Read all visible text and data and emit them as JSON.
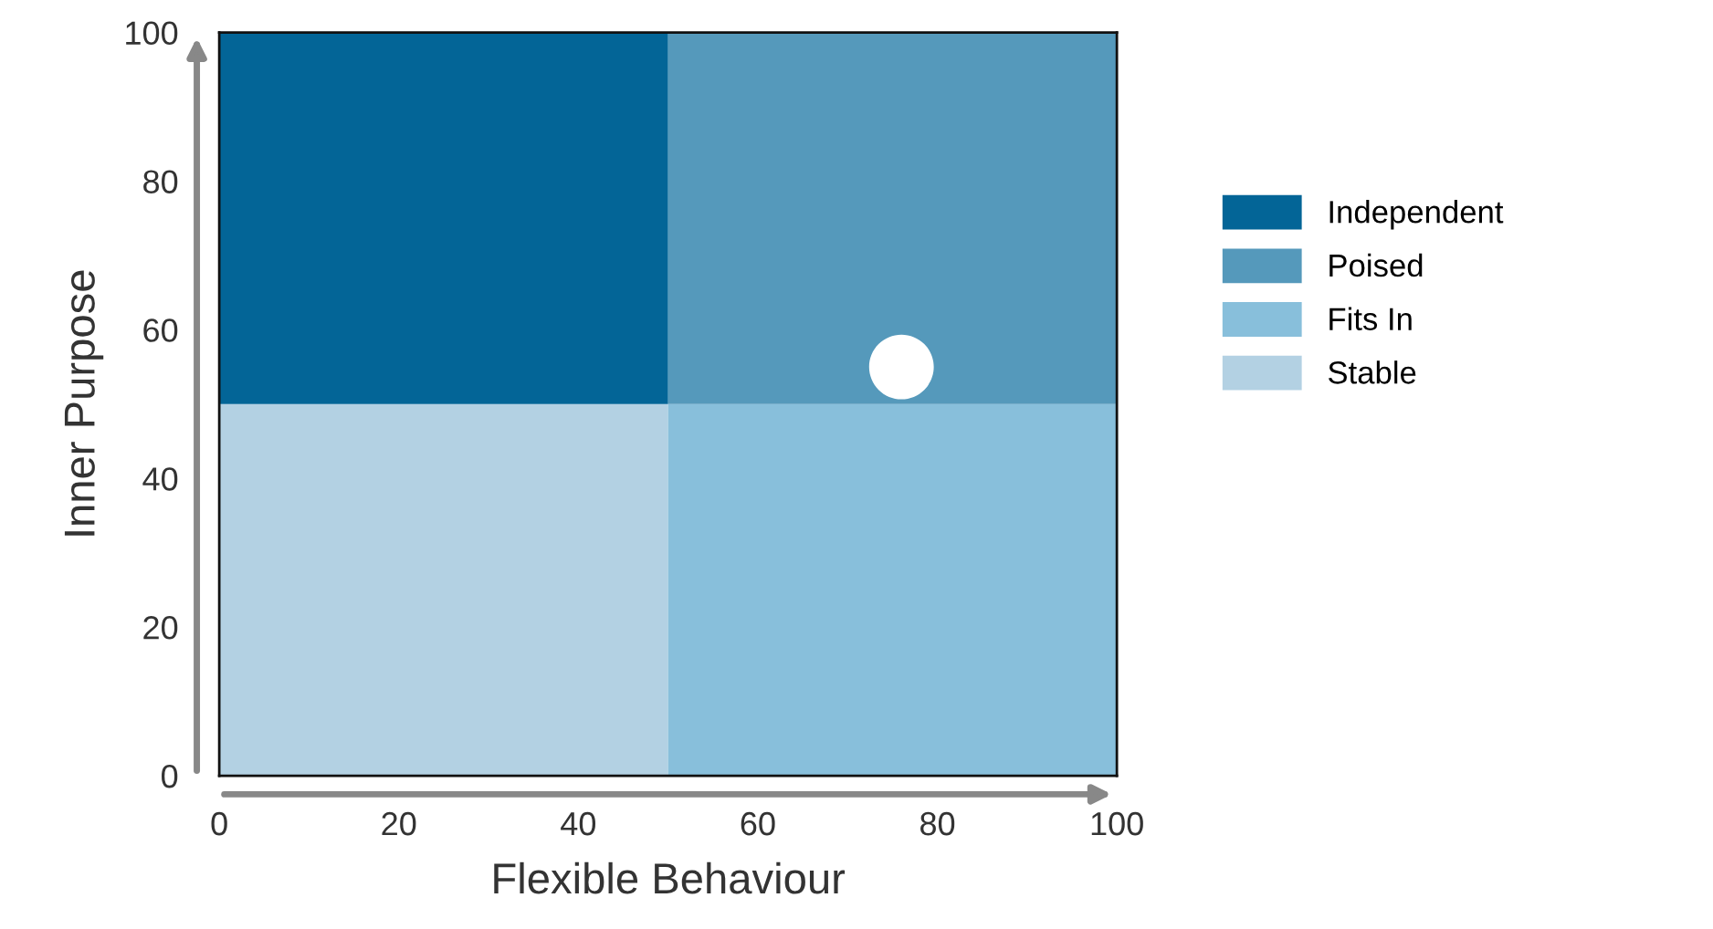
{
  "chart_data": {
    "type": "bar",
    "stacked": true,
    "xlabel": "Flexible Behaviour",
    "ylabel": "Inner Purpose",
    "x": [
      25,
      75
    ],
    "series": [
      {
        "name": "Stable",
        "color": "#b3d1e3",
        "values": [
          50,
          null
        ]
      },
      {
        "name": "Fits In",
        "color": "#88bfdb",
        "values": [
          null,
          50
        ]
      },
      {
        "name": "Poised",
        "color": "#5599bb",
        "values": [
          null,
          50
        ]
      },
      {
        "name": "Independent",
        "color": "#036597",
        "values": [
          50,
          null
        ]
      },
      {
        "type": "scatter",
        "color": "#ffffff",
        "x": [
          76
        ],
        "values": [
          55
        ],
        "marker": "circle"
      }
    ],
    "xlim": [
      0,
      100
    ],
    "ylim": [
      0,
      100
    ],
    "xticks": [
      0,
      20,
      40,
      60,
      80,
      100
    ],
    "yticks": [
      0,
      20,
      40,
      60,
      80,
      100
    ],
    "grid": false,
    "legend": "right"
  }
}
